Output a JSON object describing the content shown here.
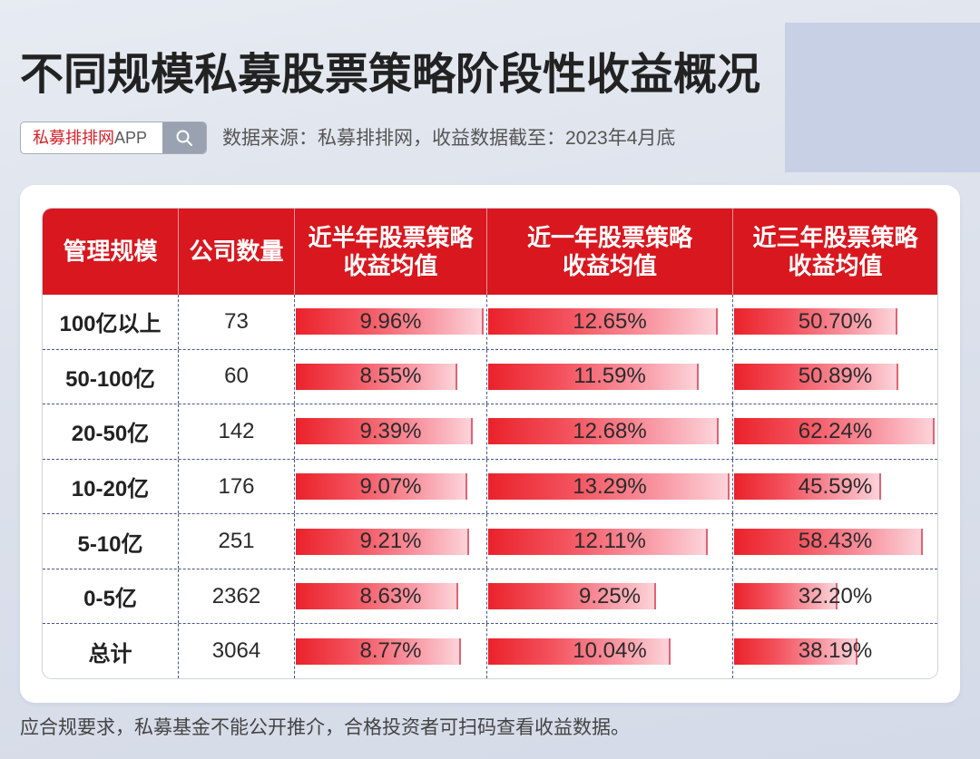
{
  "search": {
    "brand": "私募排排网",
    "suffix": "APP",
    "icon": "search-icon"
  },
  "source": "数据来源：私募排排网，收益数据截至：2023年4月底",
  "footer": "应合规要求，私募基金不能公开推介，合格投资者可扫码查看收益数据。",
  "colors": {
    "background": "#d4dae7",
    "panel": "#c7d0e5",
    "brand_red": "#d52128",
    "header_bg": "#d8171f",
    "bar_start": "#ea222b",
    "bar_end": "#fcd3d9",
    "bar_edge": "#e26273",
    "divider": "#44568e"
  },
  "chart_data": {
    "type": "table",
    "title": "不同规模私募股票策略阶段性收益概况",
    "header": {
      "scale": "管理规模",
      "count": "公司数量",
      "series": [
        {
          "line1": "近半年股票策略",
          "line2": "收益均值"
        },
        {
          "line1": "近一年股票策略",
          "line2": "收益均值"
        },
        {
          "line1": "近三年股票策略",
          "line2": "收益均值"
        }
      ]
    },
    "unit": "%",
    "rows": [
      {
        "scale": "100亿以上",
        "count": 73,
        "values": [
          9.96,
          12.65,
          50.7
        ]
      },
      {
        "scale": "50-100亿",
        "count": 60,
        "values": [
          8.55,
          11.59,
          50.89
        ]
      },
      {
        "scale": "20-50亿",
        "count": 142,
        "values": [
          9.39,
          12.68,
          62.24
        ]
      },
      {
        "scale": "10-20亿",
        "count": 176,
        "values": [
          9.07,
          13.29,
          45.59
        ]
      },
      {
        "scale": "5-10亿",
        "count": 251,
        "values": [
          9.21,
          12.11,
          58.43
        ]
      },
      {
        "scale": "0-5亿",
        "count": 2362,
        "values": [
          8.63,
          9.25,
          32.2
        ]
      },
      {
        "scale": "总计",
        "count": 3064,
        "values": [
          8.77,
          10.04,
          38.19
        ]
      }
    ]
  }
}
